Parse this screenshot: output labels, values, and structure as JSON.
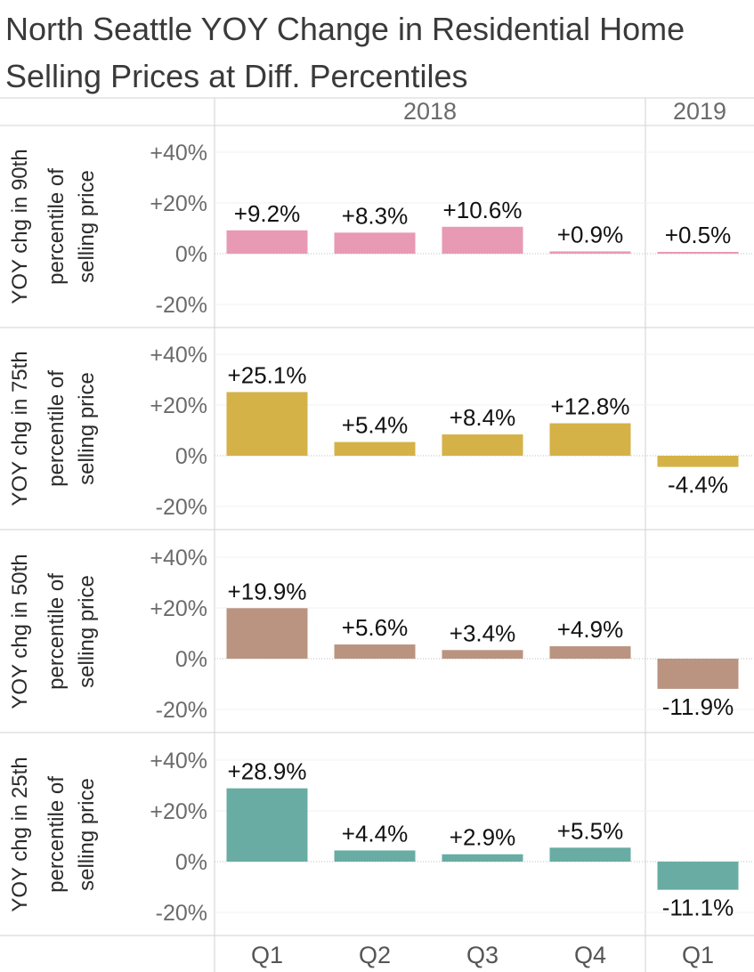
{
  "title": "North Seattle YOY Change in Residential Home Selling Prices at Diff. Percentiles",
  "chart_data": {
    "type": "bar",
    "title": "North Seattle YOY Change in Residential Home Selling Prices at Diff. Percentiles",
    "column_groups": [
      {
        "label": "2018",
        "quarters": [
          "Q1",
          "Q2",
          "Q3",
          "Q4"
        ]
      },
      {
        "label": "2019",
        "quarters": [
          "Q1"
        ]
      }
    ],
    "categories": [
      "2018 Q1",
      "2018 Q2",
      "2018 Q3",
      "2018 Q4",
      "2019 Q1"
    ],
    "x_tick_labels": [
      "Q1",
      "Q2",
      "Q3",
      "Q4",
      "Q1"
    ],
    "y_ticks": [
      "+40%",
      "+20%",
      "0%",
      "-20%"
    ],
    "y_tick_values": [
      40,
      20,
      0,
      -20
    ],
    "ylim": [
      -22,
      45
    ],
    "grid": true,
    "series": [
      {
        "name": "YOY chg in 90th percentile of selling price",
        "ylabel": [
          "YOY chg in 90th",
          "percentile of",
          "selling price"
        ],
        "color": "#e899b3",
        "values": [
          9.2,
          8.3,
          10.6,
          0.9,
          0.5
        ],
        "labels": [
          "+9.2%",
          "+8.3%",
          "+10.6%",
          "+0.9%",
          "+0.5%"
        ]
      },
      {
        "name": "YOY chg in 75th percentile of selling price",
        "ylabel": [
          "YOY chg in 75th",
          "percentile of",
          "selling price"
        ],
        "color": "#d4b247",
        "values": [
          25.1,
          5.4,
          8.4,
          12.8,
          -4.4
        ],
        "labels": [
          "+25.1%",
          "+5.4%",
          "+8.4%",
          "+12.8%",
          "-4.4%"
        ]
      },
      {
        "name": "YOY chg in 50th percentile of selling price",
        "ylabel": [
          "YOY chg in 50th",
          "percentile of",
          "selling price"
        ],
        "color": "#ba9480",
        "values": [
          19.9,
          5.6,
          3.4,
          4.9,
          -11.9
        ],
        "labels": [
          "+19.9%",
          "+5.6%",
          "+3.4%",
          "+4.9%",
          "-11.9%"
        ]
      },
      {
        "name": "YOY chg in 25th percentile of selling price",
        "ylabel": [
          "YOY chg in 25th",
          "percentile of",
          "selling price"
        ],
        "color": "#68aca3",
        "values": [
          28.9,
          4.4,
          2.9,
          5.5,
          -11.1
        ],
        "labels": [
          "+28.9%",
          "+4.4%",
          "+2.9%",
          "+5.5%",
          "-11.1%"
        ]
      }
    ]
  }
}
